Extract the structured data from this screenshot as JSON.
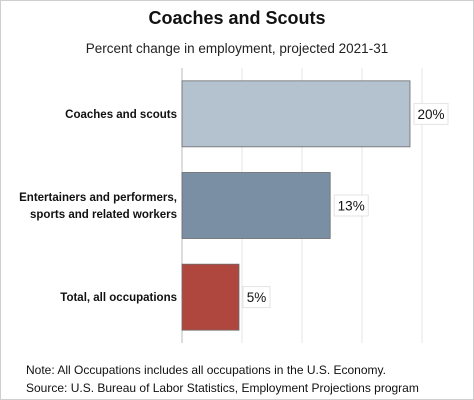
{
  "title": "Coaches and Scouts",
  "subtitle": "Percent change in employment, projected 2021-31",
  "notes": {
    "note": "Note: All Occupations includes all occupations in the U.S. Economy.",
    "source": "Source: U.S. Bureau of Labor Statistics, Employment Projections program"
  },
  "chart_data": {
    "type": "bar",
    "orientation": "horizontal",
    "title": "Coaches and Scouts",
    "subtitle": "Percent change in employment, projected 2021-31",
    "categories": [
      [
        "Coaches and scouts"
      ],
      [
        "Entertainers and performers,",
        "sports and related workers"
      ],
      [
        "Total, all occupations"
      ]
    ],
    "values": [
      20,
      13,
      5
    ],
    "value_labels": [
      "20%",
      "13%",
      "5%"
    ],
    "colors": [
      "#b3c2ce",
      "#7a8fa4",
      "#b0473f"
    ],
    "xlim": [
      0,
      20
    ],
    "grid": true
  }
}
